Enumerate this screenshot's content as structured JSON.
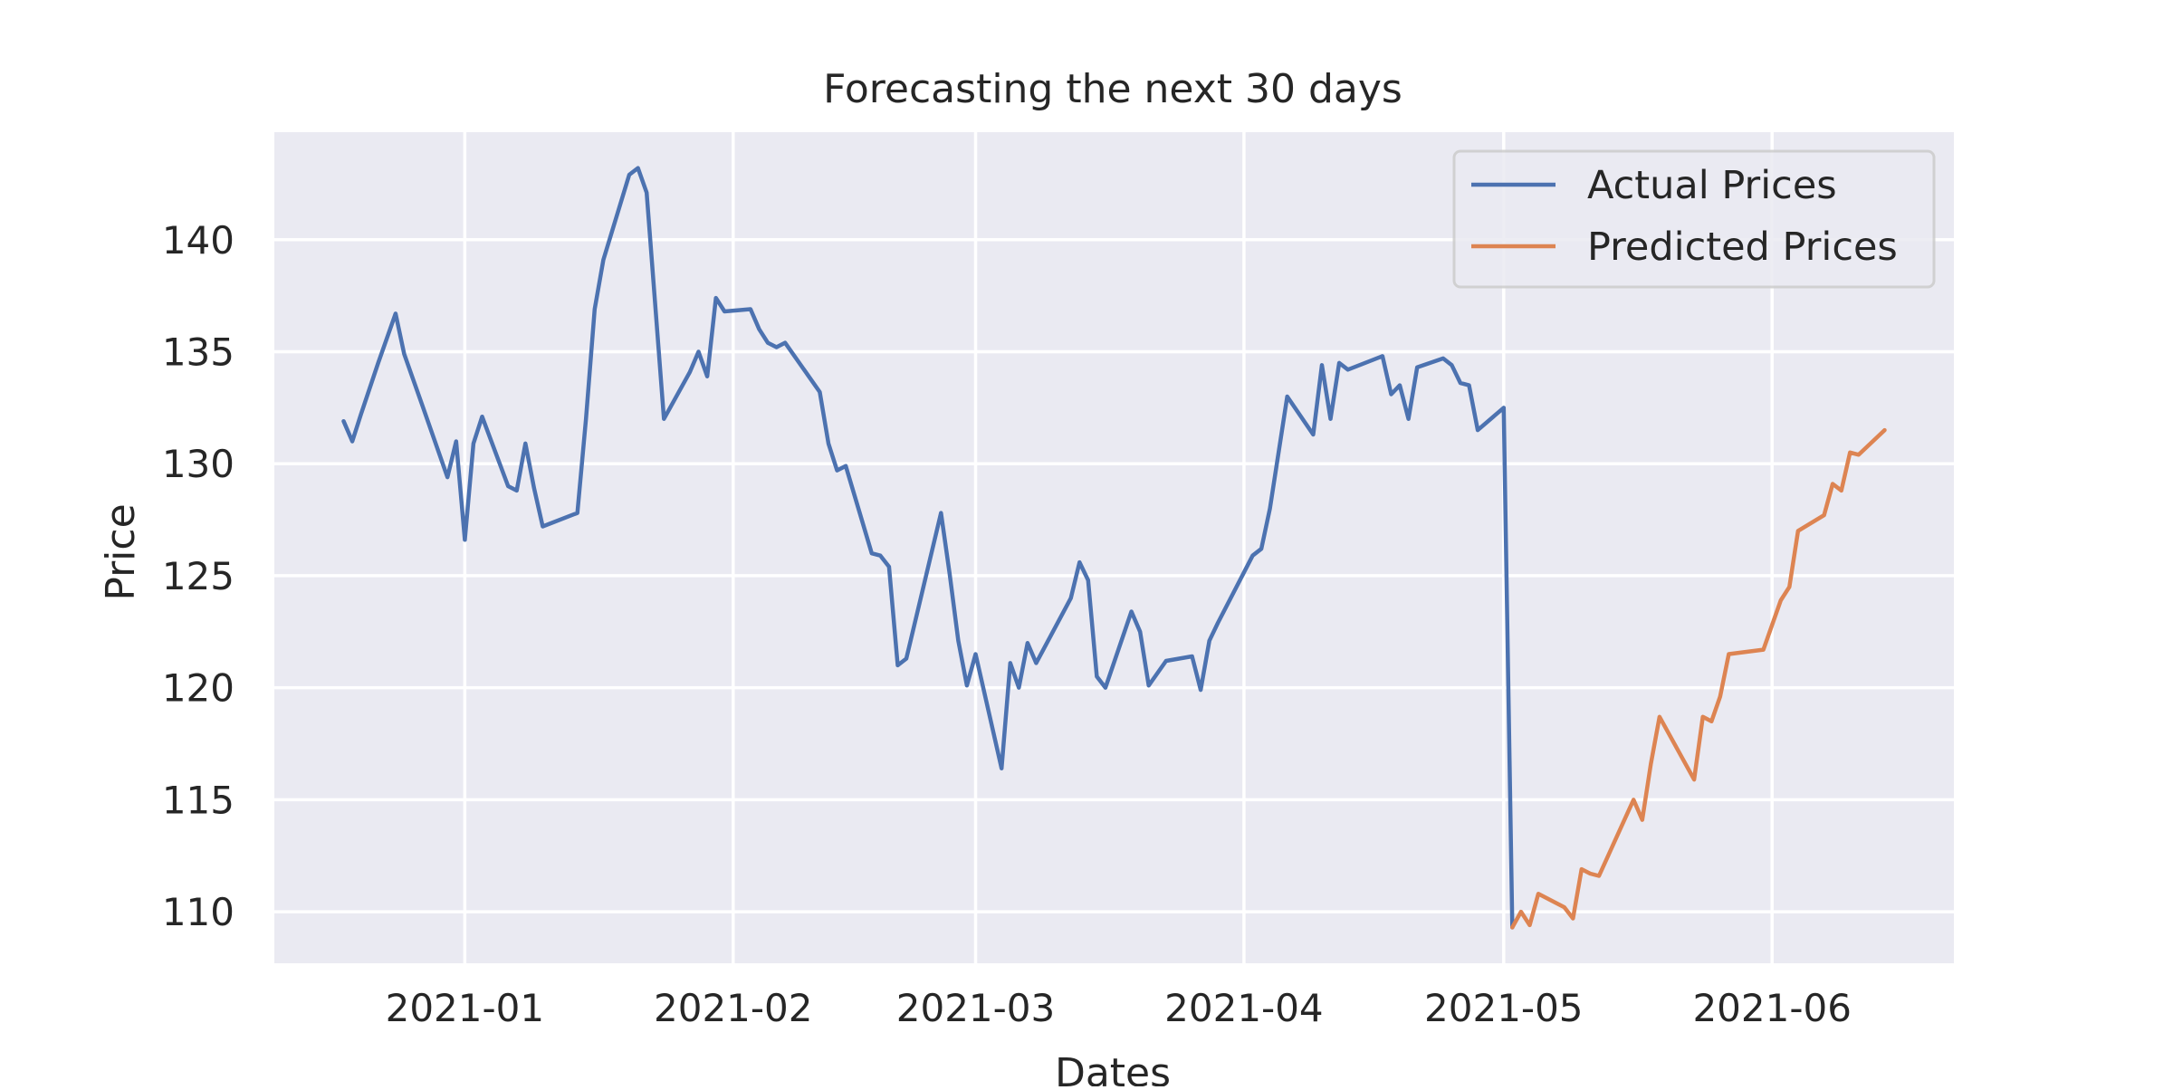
{
  "chart_data": {
    "type": "line",
    "title": "Forecasting the next 30 days",
    "xlabel": "Dates",
    "ylabel": "Price",
    "xlim": [
      "2020-12-10",
      "2021-06-22"
    ],
    "ylim": [
      107.7,
      144.8
    ],
    "x_ticks": [
      "2021-01-01",
      "2021-02-01",
      "2021-03-01",
      "2021-04-01",
      "2021-05-01",
      "2021-06-01"
    ],
    "x_tick_labels": [
      "2021-01",
      "2021-02",
      "2021-03",
      "2021-04",
      "2021-05",
      "2021-06"
    ],
    "y_ticks": [
      110,
      115,
      120,
      125,
      130,
      135,
      140
    ],
    "grid": true,
    "legend_position": "top-right",
    "series": [
      {
        "name": "Actual Prices",
        "color": "#4c72b0",
        "points": [
          [
            "2020-12-18",
            131.9
          ],
          [
            "2020-12-19",
            131.0
          ],
          [
            "2020-12-20",
            132.2
          ],
          [
            "2020-12-22",
            134.5
          ],
          [
            "2020-12-24",
            136.7
          ],
          [
            "2020-12-25",
            134.9
          ],
          [
            "2020-12-26",
            133.8
          ],
          [
            "2020-12-27",
            132.7
          ],
          [
            "2020-12-30",
            129.4
          ],
          [
            "2020-12-31",
            131.0
          ],
          [
            "2021-01-01",
            126.6
          ],
          [
            "2021-01-02",
            130.9
          ],
          [
            "2021-01-03",
            132.1
          ],
          [
            "2021-01-06",
            129.0
          ],
          [
            "2021-01-07",
            128.8
          ],
          [
            "2021-01-08",
            130.9
          ],
          [
            "2021-01-09",
            128.9
          ],
          [
            "2021-01-10",
            127.2
          ],
          [
            "2021-01-14",
            127.8
          ],
          [
            "2021-01-15",
            132.0
          ],
          [
            "2021-01-16",
            136.9
          ],
          [
            "2021-01-17",
            139.1
          ],
          [
            "2021-01-20",
            142.9
          ],
          [
            "2021-01-21",
            143.2
          ],
          [
            "2021-01-22",
            142.1
          ],
          [
            "2021-01-24",
            132.0
          ],
          [
            "2021-01-27",
            134.1
          ],
          [
            "2021-01-28",
            135.0
          ],
          [
            "2021-01-29",
            133.9
          ],
          [
            "2021-01-30",
            137.4
          ],
          [
            "2021-01-31",
            136.8
          ],
          [
            "2021-02-03",
            136.9
          ],
          [
            "2021-02-04",
            136.0
          ],
          [
            "2021-02-05",
            135.4
          ],
          [
            "2021-02-06",
            135.2
          ],
          [
            "2021-02-07",
            135.4
          ],
          [
            "2021-02-11",
            133.2
          ],
          [
            "2021-02-12",
            130.9
          ],
          [
            "2021-02-13",
            129.7
          ],
          [
            "2021-02-14",
            129.9
          ],
          [
            "2021-02-17",
            126.0
          ],
          [
            "2021-02-18",
            125.9
          ],
          [
            "2021-02-19",
            125.4
          ],
          [
            "2021-02-20",
            121.0
          ],
          [
            "2021-02-21",
            121.3
          ],
          [
            "2021-02-25",
            127.8
          ],
          [
            "2021-02-26",
            125.1
          ],
          [
            "2021-02-27",
            122.1
          ],
          [
            "2021-02-28",
            120.1
          ],
          [
            "2021-03-01",
            121.5
          ],
          [
            "2021-03-04",
            116.4
          ],
          [
            "2021-03-05",
            121.1
          ],
          [
            "2021-03-06",
            120.0
          ],
          [
            "2021-03-07",
            122.0
          ],
          [
            "2021-03-08",
            121.1
          ],
          [
            "2021-03-12",
            124.0
          ],
          [
            "2021-03-13",
            125.6
          ],
          [
            "2021-03-14",
            124.8
          ],
          [
            "2021-03-15",
            120.5
          ],
          [
            "2021-03-16",
            120.0
          ],
          [
            "2021-03-19",
            123.4
          ],
          [
            "2021-03-20",
            122.5
          ],
          [
            "2021-03-21",
            120.1
          ],
          [
            "2021-03-23",
            121.2
          ],
          [
            "2021-03-26",
            121.4
          ],
          [
            "2021-03-27",
            119.9
          ],
          [
            "2021-03-28",
            122.1
          ],
          [
            "2021-03-29",
            122.9
          ],
          [
            "2021-04-02",
            125.9
          ],
          [
            "2021-04-03",
            126.2
          ],
          [
            "2021-04-04",
            128.0
          ],
          [
            "2021-04-06",
            133.0
          ],
          [
            "2021-04-09",
            131.3
          ],
          [
            "2021-04-10",
            134.4
          ],
          [
            "2021-04-11",
            132.0
          ],
          [
            "2021-04-12",
            134.5
          ],
          [
            "2021-04-13",
            134.2
          ],
          [
            "2021-04-17",
            134.8
          ],
          [
            "2021-04-18",
            133.1
          ],
          [
            "2021-04-19",
            133.5
          ],
          [
            "2021-04-20",
            132.0
          ],
          [
            "2021-04-21",
            134.3
          ],
          [
            "2021-04-24",
            134.7
          ],
          [
            "2021-04-25",
            134.4
          ],
          [
            "2021-04-26",
            133.6
          ],
          [
            "2021-04-27",
            133.5
          ],
          [
            "2021-04-28",
            131.5
          ],
          [
            "2021-05-01",
            132.5
          ],
          [
            "2021-05-02",
            109.3
          ]
        ]
      },
      {
        "name": "Predicted Prices",
        "color": "#dd8452",
        "points": [
          [
            "2021-05-02",
            109.3
          ],
          [
            "2021-05-03",
            110.0
          ],
          [
            "2021-05-04",
            109.4
          ],
          [
            "2021-05-05",
            110.8
          ],
          [
            "2021-05-08",
            110.2
          ],
          [
            "2021-05-09",
            109.7
          ],
          [
            "2021-05-10",
            111.9
          ],
          [
            "2021-05-11",
            111.7
          ],
          [
            "2021-05-12",
            111.6
          ],
          [
            "2021-05-16",
            115.0
          ],
          [
            "2021-05-17",
            114.1
          ],
          [
            "2021-05-18",
            116.6
          ],
          [
            "2021-05-19",
            118.7
          ],
          [
            "2021-05-23",
            115.9
          ],
          [
            "2021-05-24",
            118.7
          ],
          [
            "2021-05-25",
            118.5
          ],
          [
            "2021-05-26",
            119.6
          ],
          [
            "2021-05-27",
            121.5
          ],
          [
            "2021-05-31",
            121.7
          ],
          [
            "2021-06-02",
            123.9
          ],
          [
            "2021-06-03",
            124.5
          ],
          [
            "2021-06-04",
            127.0
          ],
          [
            "2021-06-07",
            127.7
          ],
          [
            "2021-06-08",
            129.1
          ],
          [
            "2021-06-09",
            128.8
          ],
          [
            "2021-06-10",
            130.5
          ],
          [
            "2021-06-11",
            130.4
          ],
          [
            "2021-06-14",
            131.5
          ]
        ]
      }
    ]
  }
}
